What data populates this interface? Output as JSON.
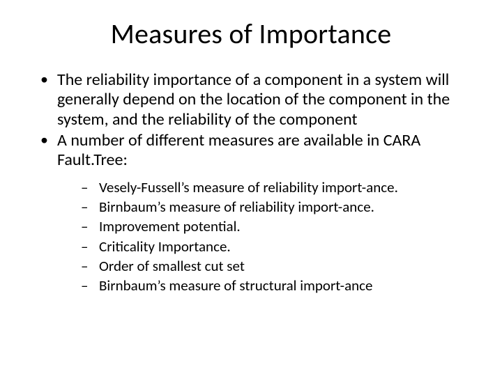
{
  "title": "Measures of Importance",
  "bullets": [
    "The reliability importance of a component in a system will generally depend on the location of the component in the system, and the reliability of the component",
    "A number of different measures are available in CARA Fault.Tree:"
  ],
  "subbullets": [
    "Vesely-Fussell’s measure of reliability import-ance.",
    "Birnbaum’s measure of reliability import-ance.",
    "Improvement potential.",
    "Criticality Importance.",
    "Order of smallest cut set",
    "Birnbaum’s measure of structural import-ance"
  ],
  "style": {
    "background": "#ffffff",
    "text_color": "#000000",
    "title_fontsize": 40,
    "body_fontsize": 24,
    "sub_fontsize": 21
  }
}
